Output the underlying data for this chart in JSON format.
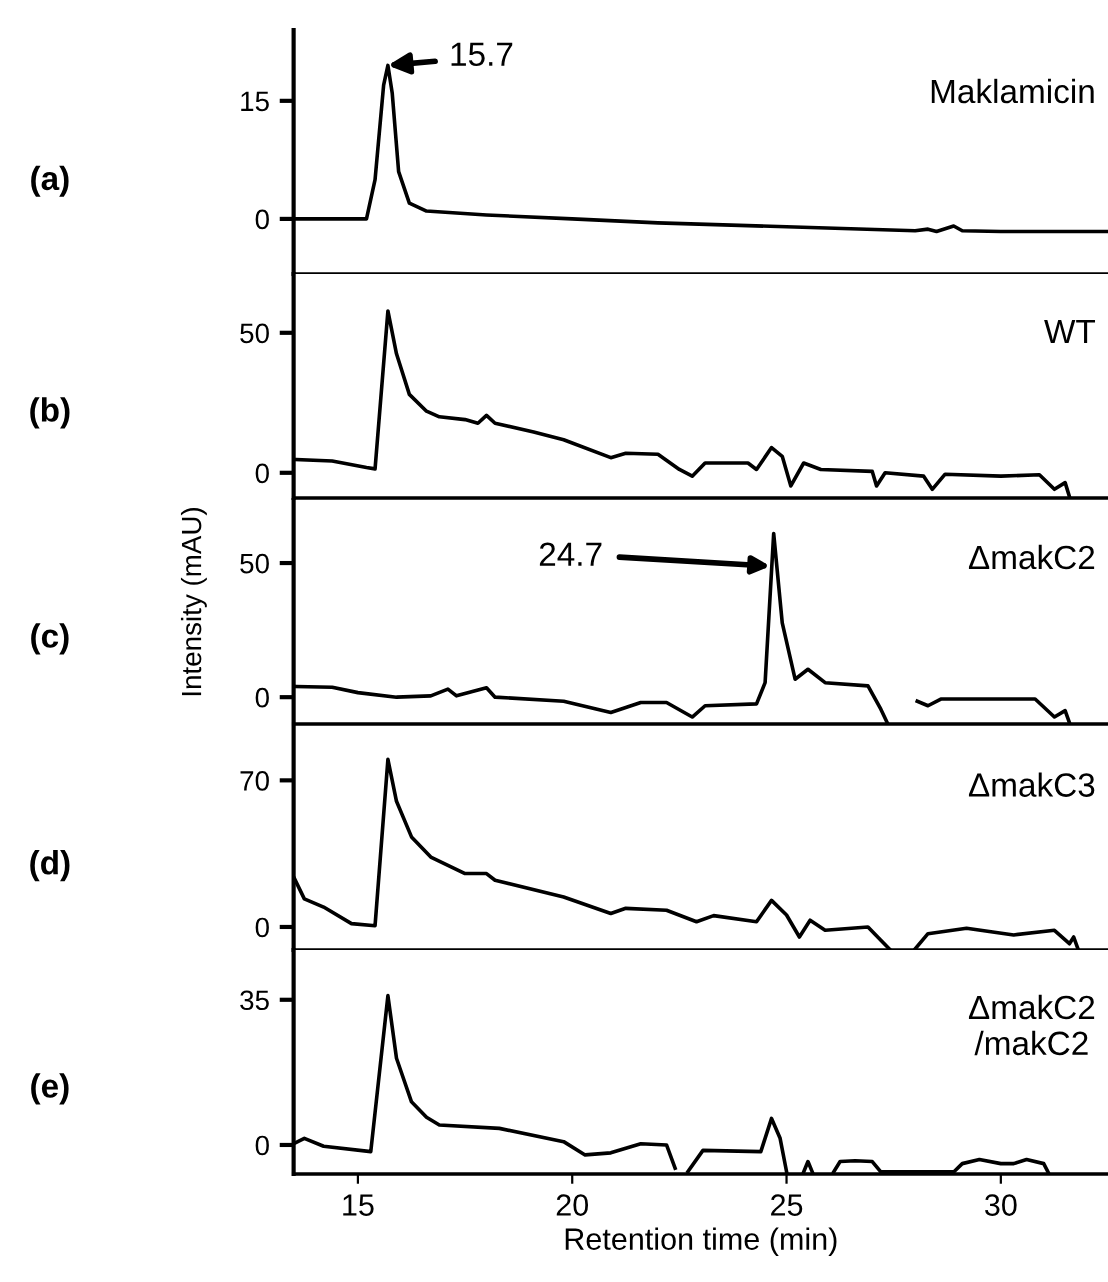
{
  "chart_data": [
    {
      "type": "line",
      "xlim": [
        13.5,
        32.5
      ],
      "ylim": [
        -7,
        24
      ],
      "yticks": [
        0,
        15
      ],
      "tick_labels": "y",
      "grid": false,
      "legend": false,
      "marker": "none",
      "line_style": "solid",
      "annotations": [
        "(a)",
        "Maklamicin",
        {
          "text": "15.7",
          "x": 15.7,
          "y": 19.5
        }
      ],
      "series": [
        {
          "color": "#000000",
          "x": [
            13.5,
            15.2,
            15.4,
            15.6,
            15.7,
            15.8,
            15.95,
            16.2,
            16.6,
            18,
            20,
            22,
            25,
            28,
            28.3,
            28.5,
            28.9,
            29.1,
            30,
            32.5
          ],
          "values": [
            0,
            0,
            5,
            17,
            19.5,
            16,
            6,
            2,
            1,
            0.5,
            0,
            -0.5,
            -1,
            -1.5,
            -1.3,
            -1.6,
            -0.9,
            -1.5,
            -1.6,
            -1.6
          ]
        }
      ]
    },
    {
      "type": "line",
      "xlim": [
        13.5,
        32.5
      ],
      "ylim": [
        -9,
        71
      ],
      "yticks": [
        0,
        50
      ],
      "tick_labels": "y",
      "grid": false,
      "legend": false,
      "marker": "none",
      "line_style": "solid",
      "annotations": [
        "(b)",
        "WT"
      ],
      "series": [
        {
          "color": "#000000",
          "x": [
            13.56,
            14.4,
            15.2,
            15.4,
            15.7,
            15.9,
            16.2,
            16.6,
            16.9,
            17.5,
            17.8,
            18.0,
            18.2,
            19.1,
            19.8,
            20.9,
            21.25,
            22.0,
            22.5,
            22.8,
            23.1,
            24.1,
            24.3,
            24.65,
            24.9,
            25.1,
            25.4,
            25.8,
            27.0,
            27.1,
            27.3,
            28.2,
            28.4,
            28.7,
            30.0,
            30.9,
            31.25,
            31.5,
            31.6
          ],
          "values": [
            4.7,
            4.2,
            1.9,
            1.4,
            57.8,
            42.5,
            28,
            22,
            20,
            19,
            17.7,
            20.5,
            17.7,
            14.6,
            11.8,
            5.4,
            7,
            6.6,
            1.2,
            -1.2,
            3.5,
            3.5,
            1.2,
            9,
            5.9,
            -4.7,
            3.5,
            1.2,
            0.5,
            -4.7,
            0,
            -1.2,
            -5.9,
            -0.5,
            -1.2,
            -0.7,
            -5.9,
            -3.5,
            -8.5
          ]
        }
      ]
    },
    {
      "type": "line",
      "xlim": [
        13.5,
        32.5
      ],
      "ylim": [
        -10,
        73.5
      ],
      "yticks": [
        0,
        50
      ],
      "tick_labels": "y",
      "grid": false,
      "legend": false,
      "marker": "none",
      "line_style": "solid",
      "ylabel": "Intensity (mAU)",
      "annotations": [
        "(c)",
        "ΔmakC2",
        "24.7"
      ],
      "series": [
        {
          "color": "#000000",
          "x": [
            13.56,
            14.4,
            15.0,
            15.9,
            16.7,
            17.1,
            17.3,
            18.0,
            18.2,
            19.8,
            20.9,
            21.6,
            22.2,
            22.8,
            23.1,
            24.3,
            24.5,
            24.7,
            24.9,
            25.2,
            25.5,
            25.9,
            26.9,
            27.2,
            27.35,
            27.8,
            28.05,
            28.3,
            28.6,
            30.8,
            31.25,
            31.5,
            31.6
          ],
          "values": [
            4,
            3.7,
            1.7,
            0,
            0.5,
            3,
            0.5,
            3.5,
            0,
            -1.5,
            -5.7,
            -2,
            -2,
            -7.4,
            -3.2,
            -2.5,
            5.4,
            61,
            27.7,
            6.7,
            10.4,
            5.4,
            4.2,
            -4.5,
            -9.5,
            null,
            -1.5,
            -3.2,
            -0.7,
            -0.7,
            -7.4,
            -5,
            -9.5
          ]
        }
      ]
    },
    {
      "type": "line",
      "xlim": [
        13.5,
        32.5
      ],
      "ylim": [
        -11,
        95
      ],
      "yticks": [
        0,
        70
      ],
      "tick_labels": "y",
      "grid": false,
      "legend": false,
      "marker": "none",
      "line_style": "solid",
      "annotations": [
        "(d)",
        "ΔmakC3"
      ],
      "series": [
        {
          "color": "#000000",
          "x": [
            13.5,
            13.75,
            14.2,
            14.85,
            15.4,
            15.7,
            15.9,
            16.25,
            16.7,
            17.5,
            18.0,
            18.2,
            19.8,
            20.9,
            21.25,
            22.2,
            22.9,
            23.3,
            24.3,
            24.65,
            25.0,
            25.3,
            25.55,
            25.9,
            26.9,
            27.2,
            27.4,
            27.7,
            28.0,
            28.3,
            29.2,
            30.3,
            31.25,
            31.6,
            31.7,
            31.8
          ],
          "values": [
            23.9,
            13.4,
            9.5,
            1.6,
            0.6,
            80,
            60,
            43,
            33.4,
            25.5,
            25.5,
            22.3,
            14.3,
            6.4,
            8.9,
            8,
            2.5,
            5.4,
            2.5,
            12.7,
            5.7,
            -4.8,
            3.2,
            -1.6,
            0,
            -6.4,
            -10.5,
            null,
            -10.5,
            -3.2,
            -0.6,
            -3.8,
            -1.6,
            -8,
            -4.8,
            -10.5
          ]
        }
      ]
    },
    {
      "type": "line",
      "xlim": [
        13.5,
        32.5
      ],
      "ylim": [
        -7,
        47
      ],
      "yticks": [
        0,
        35
      ],
      "xticks": [
        15,
        20,
        25,
        30
      ],
      "grid": false,
      "legend": false,
      "marker": "none",
      "line_style": "solid",
      "xlabel": "Retention time (min)",
      "annotations": [
        "(e)",
        "ΔmakC2\n/makC2"
      ],
      "series": [
        {
          "color": "#000000",
          "x": [
            13.5,
            13.75,
            14.2,
            15.3,
            15.7,
            15.9,
            16.25,
            16.6,
            16.9,
            18.3,
            19.8,
            20.3,
            20.9,
            21.6,
            22.2,
            22.4,
            22.55,
            22.7,
            23.05,
            24.4,
            24.65,
            24.85,
            25.0,
            25.2,
            25.4,
            25.5,
            25.6,
            25.8,
            26.1,
            26.25,
            26.6,
            27.0,
            27.2,
            28.9,
            29.1,
            29.5,
            30.0,
            30.3,
            30.6,
            31.0,
            31.1
          ],
          "values": [
            0.3,
            1.6,
            -0.3,
            -1.6,
            36,
            20.9,
            10.4,
            6.7,
            4.8,
            4,
            0.8,
            -2.4,
            -1.9,
            0.3,
            0,
            -5.6,
            null,
            -6.4,
            -1.3,
            -1.6,
            6.4,
            1.6,
            -6.4,
            null,
            -6.5,
            -4,
            -6.5,
            null,
            -6.5,
            -4,
            -3.8,
            -4,
            -6.5,
            -6.5,
            -4.5,
            -3.5,
            -4.5,
            -4.5,
            -3.5,
            -4.5,
            -6.5
          ]
        }
      ]
    }
  ]
}
